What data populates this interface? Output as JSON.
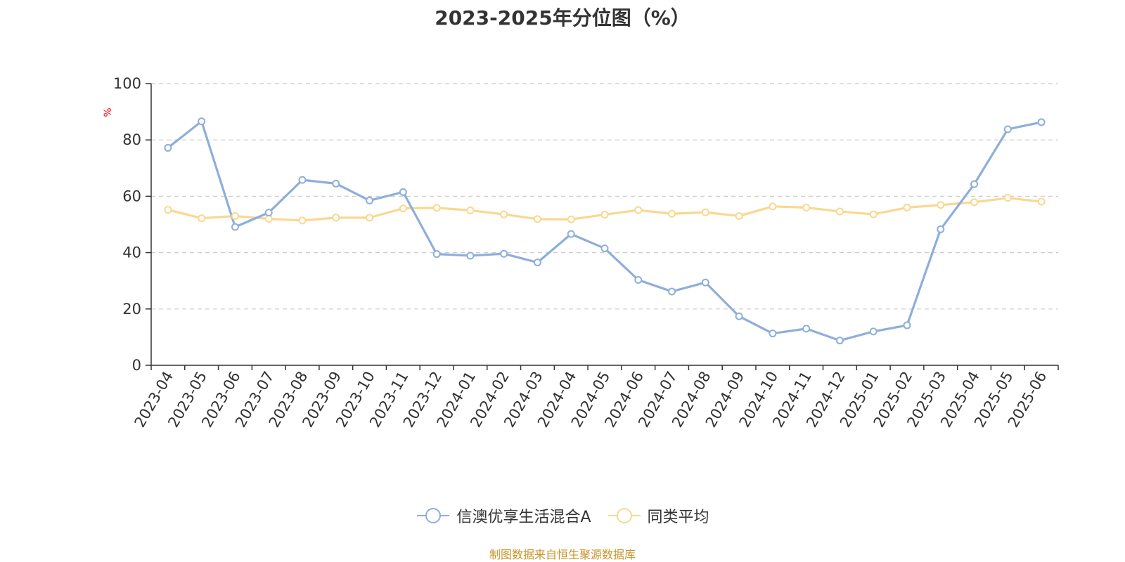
{
  "chart_data": {
    "type": "line",
    "title": "2023-2025年分位图（%）",
    "ylabel": "%",
    "ylim": [
      0,
      100
    ],
    "yticks": [
      0,
      20,
      40,
      60,
      80,
      100
    ],
    "grid": true,
    "legend_position": "bottom",
    "categories": [
      "2023-04",
      "2023-05",
      "2023-06",
      "2023-07",
      "2023-08",
      "2023-09",
      "2023-10",
      "2023-11",
      "2023-12",
      "2024-01",
      "2024-02",
      "2024-03",
      "2024-04",
      "2024-05",
      "2024-06",
      "2024-07",
      "2024-08",
      "2024-09",
      "2024-10",
      "2024-11",
      "2024-12",
      "2025-01",
      "2025-02",
      "2025-03",
      "2025-04",
      "2025-05",
      "2025-06"
    ],
    "series": [
      {
        "name": "信澳优享生活混合A",
        "color": "#8eaedb",
        "values": [
          77.2,
          86.6,
          49.1,
          54.2,
          65.8,
          64.5,
          58.5,
          61.5,
          39.5,
          38.9,
          39.6,
          36.5,
          46.6,
          41.5,
          30.3,
          26.2,
          29.4,
          17.4,
          11.3,
          13.0,
          8.8,
          12.0,
          14.2,
          48.3,
          64.3,
          83.8,
          86.3
        ]
      },
      {
        "name": "同类平均",
        "color": "#f9d88f",
        "values": [
          55.2,
          52.2,
          53.0,
          52.0,
          51.4,
          52.4,
          52.4,
          55.7,
          55.9,
          55.0,
          53.6,
          51.9,
          51.8,
          53.5,
          55.1,
          53.8,
          54.3,
          53.0,
          56.4,
          56.0,
          54.6,
          53.6,
          56.0,
          56.9,
          57.9,
          59.4,
          58.1
        ]
      }
    ]
  },
  "source_note": "制图数据来自恒生聚源数据库"
}
